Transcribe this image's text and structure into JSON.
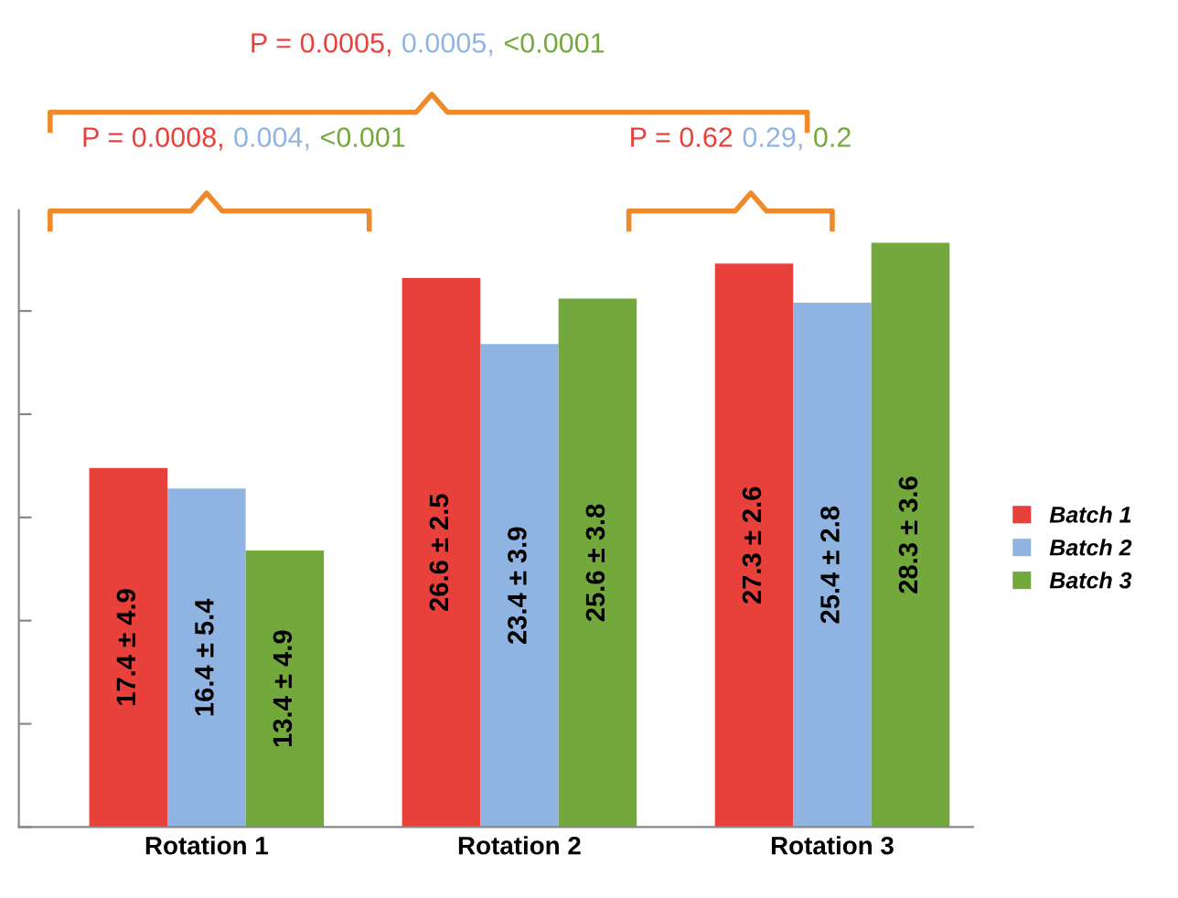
{
  "chart_data": {
    "type": "bar",
    "tick_labels": "x",
    "categories": [
      "Rotation 1",
      "Rotation 2",
      "Rotation 3"
    ],
    "series": [
      {
        "name": "Batch 1",
        "color": "#e8403b",
        "values": [
          17.4,
          26.6,
          27.3
        ],
        "value_labels": [
          "17.4 ± 4.9",
          "26.6 ± 2.5",
          "27.3 ± 2.6"
        ]
      },
      {
        "name": "Batch 2",
        "color": "#8fb4e2",
        "values": [
          16.4,
          23.4,
          25.4
        ],
        "value_labels": [
          "16.4 ± 5.4",
          "23.4 ± 3.9",
          "25.4 ± 2.8"
        ]
      },
      {
        "name": "Batch 3",
        "color": "#72a83c",
        "values": [
          13.4,
          25.6,
          28.3
        ],
        "value_labels": [
          "13.4 ± 4.9",
          "25.6 ± 3.8",
          "28.3 ± 3.6"
        ]
      }
    ],
    "annotations": [
      "P = 0.0005,",
      "0.0005,",
      "<0.0001",
      "P = 0.0008,",
      "0.004,",
      "<0.001",
      "P = 0.62",
      "0.29,",
      "0.2"
    ],
    "legend": "right",
    "grid": false
  }
}
